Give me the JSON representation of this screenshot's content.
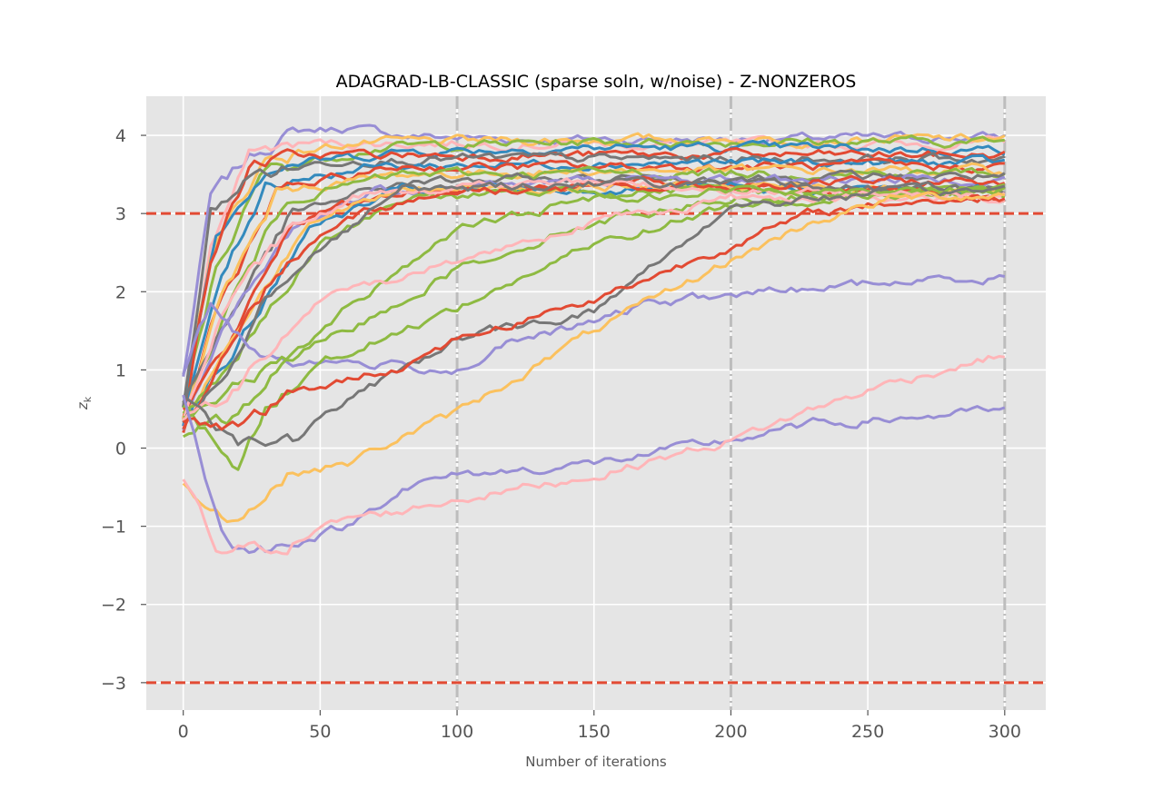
{
  "chart_data": {
    "type": "line",
    "title": "ADAGRAD-LB-CLASSIC (sparse soln, w/noise) - Z-NONZEROS",
    "xlabel": "Number of iterations",
    "ylabel": "z_k",
    "xlim": [
      -13.5,
      315
    ],
    "ylim": [
      -3.35,
      4.5
    ],
    "xticks": [
      0,
      50,
      100,
      150,
      200,
      250,
      300
    ],
    "yticks": [
      -3,
      -2,
      -1,
      0,
      1,
      2,
      3,
      4
    ],
    "xtick_labels": [
      "0",
      "50",
      "100",
      "150",
      "200",
      "250",
      "300"
    ],
    "ytick_labels": [
      "−3",
      "−2",
      "−1",
      "0",
      "1",
      "2",
      "3",
      "4"
    ],
    "grid": true,
    "background": "#e5e5e5",
    "threshold_lines": [
      {
        "y": 3,
        "color": "#e24a33",
        "style": "dashed"
      },
      {
        "y": -3,
        "color": "#e24a33",
        "style": "dashed"
      }
    ],
    "vertical_markers": [
      {
        "x": 100,
        "color": "#bdbdbd",
        "style": "dashdot"
      },
      {
        "x": 200,
        "color": "#bdbdbd",
        "style": "dashdot"
      },
      {
        "x": 300,
        "color": "#bdbdbd",
        "style": "dashdot"
      }
    ],
    "palette": [
      "#e24a33",
      "#348abd",
      "#988ed5",
      "#777777",
      "#fbc15e",
      "#8eba42",
      "#ffb5b8"
    ],
    "series": [
      {
        "color": "#988ed5",
        "values": [
          [
            0,
            0.9
          ],
          [
            10,
            3.2
          ],
          [
            25,
            3.75
          ],
          [
            40,
            4.05
          ],
          [
            60,
            4.1
          ],
          [
            80,
            4.0
          ],
          [
            120,
            3.95
          ],
          [
            200,
            3.95
          ],
          [
            300,
            3.98
          ]
        ]
      },
      {
        "color": "#ffb5b8",
        "values": [
          [
            0,
            0.3
          ],
          [
            10,
            2.6
          ],
          [
            25,
            3.8
          ],
          [
            45,
            3.9
          ],
          [
            100,
            3.9
          ],
          [
            200,
            3.88
          ],
          [
            300,
            3.9
          ]
        ]
      },
      {
        "color": "#fbc15e",
        "values": [
          [
            0,
            0.4
          ],
          [
            10,
            2.5
          ],
          [
            30,
            3.7
          ],
          [
            60,
            3.9
          ],
          [
            150,
            3.95
          ],
          [
            300,
            3.95
          ]
        ]
      },
      {
        "color": "#8eba42",
        "values": [
          [
            0,
            0.5
          ],
          [
            12,
            2.3
          ],
          [
            30,
            3.55
          ],
          [
            70,
            3.85
          ],
          [
            150,
            3.92
          ],
          [
            300,
            3.92
          ]
        ]
      },
      {
        "color": "#348abd",
        "values": [
          [
            0,
            0.6
          ],
          [
            12,
            2.8
          ],
          [
            30,
            3.6
          ],
          [
            80,
            3.8
          ],
          [
            160,
            3.85
          ],
          [
            300,
            3.82
          ]
        ]
      },
      {
        "color": "#e24a33",
        "values": [
          [
            0,
            0.4
          ],
          [
            10,
            2.4
          ],
          [
            25,
            3.65
          ],
          [
            50,
            3.75
          ],
          [
            150,
            3.75
          ],
          [
            300,
            3.75
          ]
        ]
      },
      {
        "color": "#777777",
        "values": [
          [
            0,
            0.5
          ],
          [
            10,
            3.0
          ],
          [
            25,
            3.5
          ],
          [
            60,
            3.7
          ],
          [
            150,
            3.7
          ],
          [
            300,
            3.7
          ]
        ]
      },
      {
        "color": "#348abd",
        "values": [
          [
            0,
            0.3
          ],
          [
            12,
            2.0
          ],
          [
            30,
            3.4
          ],
          [
            70,
            3.6
          ],
          [
            150,
            3.65
          ],
          [
            300,
            3.65
          ]
        ]
      },
      {
        "color": "#e24a33",
        "values": [
          [
            0,
            0.2
          ],
          [
            12,
            1.8
          ],
          [
            35,
            3.3
          ],
          [
            80,
            3.6
          ],
          [
            160,
            3.6
          ],
          [
            300,
            3.6
          ]
        ]
      },
      {
        "color": "#fbc15e",
        "values": [
          [
            0,
            0.4
          ],
          [
            14,
            1.9
          ],
          [
            35,
            3.3
          ],
          [
            80,
            3.5
          ],
          [
            160,
            3.55
          ],
          [
            300,
            3.55
          ]
        ]
      },
      {
        "color": "#8eba42",
        "values": [
          [
            0,
            0.3
          ],
          [
            15,
            1.7
          ],
          [
            38,
            3.2
          ],
          [
            80,
            3.5
          ],
          [
            160,
            3.52
          ],
          [
            300,
            3.52
          ]
        ]
      },
      {
        "color": "#777777",
        "values": [
          [
            0,
            0.6
          ],
          [
            15,
            1.6
          ],
          [
            40,
            3.0
          ],
          [
            80,
            3.4
          ],
          [
            150,
            3.45
          ],
          [
            300,
            3.48
          ]
        ]
      },
      {
        "color": "#988ed5",
        "values": [
          [
            0,
            0.2
          ],
          [
            15,
            1.5
          ],
          [
            40,
            2.8
          ],
          [
            70,
            3.3
          ],
          [
            150,
            3.42
          ],
          [
            300,
            3.45
          ]
        ]
      },
      {
        "color": "#e24a33",
        "values": [
          [
            0,
            0.5
          ],
          [
            18,
            1.4
          ],
          [
            40,
            2.9
          ],
          [
            80,
            3.3
          ],
          [
            160,
            3.38
          ],
          [
            300,
            3.42
          ]
        ]
      },
      {
        "color": "#348abd",
        "values": [
          [
            0,
            0.4
          ],
          [
            20,
            1.3
          ],
          [
            45,
            2.8
          ],
          [
            80,
            3.3
          ],
          [
            160,
            3.3
          ],
          [
            300,
            3.32
          ]
        ]
      },
      {
        "color": "#fbc15e",
        "values": [
          [
            0,
            0.3
          ],
          [
            20,
            1.6
          ],
          [
            45,
            2.9
          ],
          [
            80,
            3.3
          ],
          [
            150,
            3.35
          ],
          [
            300,
            3.3
          ]
        ]
      },
      {
        "color": "#8eba42",
        "values": [
          [
            0,
            0.4
          ],
          [
            20,
            1.2
          ],
          [
            50,
            2.6
          ],
          [
            80,
            3.2
          ],
          [
            150,
            3.3
          ],
          [
            300,
            3.25
          ]
        ]
      },
      {
        "color": "#e24a33",
        "values": [
          [
            0,
            0.3
          ],
          [
            15,
            1.2
          ],
          [
            35,
            2.3
          ],
          [
            60,
            3.0
          ],
          [
            100,
            3.3
          ],
          [
            200,
            3.35
          ],
          [
            300,
            3.2
          ]
        ]
      },
      {
        "color": "#ffb5b8",
        "values": [
          [
            0,
            0.3
          ],
          [
            15,
            1.8
          ],
          [
            40,
            2.8
          ],
          [
            70,
            3.3
          ],
          [
            150,
            3.4
          ],
          [
            300,
            3.15
          ]
        ]
      },
      {
        "color": "#777777",
        "values": [
          [
            0,
            0.3
          ],
          [
            15,
            1.0
          ],
          [
            30,
            2.0
          ],
          [
            55,
            2.7
          ],
          [
            80,
            3.3
          ],
          [
            150,
            3.4
          ],
          [
            300,
            3.3
          ]
        ]
      },
      {
        "color": "#988ed5",
        "values": [
          [
            0,
            0.9
          ],
          [
            10,
            1.8
          ],
          [
            25,
            1.3
          ],
          [
            40,
            1.1
          ],
          [
            60,
            1.1
          ],
          [
            80,
            1.05
          ],
          [
            100,
            1.0
          ],
          [
            120,
            1.35
          ],
          [
            150,
            1.6
          ],
          [
            170,
            1.85
          ],
          [
            200,
            1.95
          ],
          [
            230,
            2.05
          ],
          [
            260,
            2.12
          ],
          [
            300,
            2.2
          ]
        ]
      },
      {
        "color": "#8eba42",
        "values": [
          [
            0,
            0.5
          ],
          [
            20,
            -0.2
          ],
          [
            30,
            0.5
          ],
          [
            50,
            1.1
          ],
          [
            80,
            1.5
          ],
          [
            100,
            1.8
          ],
          [
            150,
            2.6
          ],
          [
            200,
            3.1
          ],
          [
            250,
            3.25
          ],
          [
            300,
            3.28
          ]
        ]
      },
      {
        "color": "#8eba42",
        "values": [
          [
            0,
            0.2
          ],
          [
            20,
            0.4
          ],
          [
            40,
            1.2
          ],
          [
            60,
            1.8
          ],
          [
            100,
            2.8
          ],
          [
            150,
            3.2
          ],
          [
            200,
            3.3
          ],
          [
            300,
            3.3
          ]
        ]
      },
      {
        "color": "#8eba42",
        "values": [
          [
            0,
            0.4
          ],
          [
            25,
            0.9
          ],
          [
            60,
            1.5
          ],
          [
            100,
            2.3
          ],
          [
            150,
            2.9
          ],
          [
            200,
            3.2
          ],
          [
            300,
            3.3
          ]
        ]
      },
      {
        "color": "#ffb5b8",
        "values": [
          [
            0,
            0.3
          ],
          [
            20,
            0.8
          ],
          [
            50,
            1.9
          ],
          [
            100,
            2.4
          ],
          [
            150,
            2.9
          ],
          [
            200,
            3.2
          ],
          [
            300,
            3.25
          ]
        ]
      },
      {
        "color": "#777777",
        "values": [
          [
            0,
            0.7
          ],
          [
            20,
            0.1
          ],
          [
            40,
            0.1
          ],
          [
            60,
            0.6
          ],
          [
            100,
            1.4
          ],
          [
            150,
            1.75
          ],
          [
            200,
            3.1
          ],
          [
            250,
            3.25
          ],
          [
            300,
            3.3
          ]
        ]
      },
      {
        "color": "#e24a33",
        "values": [
          [
            0,
            0.4
          ],
          [
            20,
            0.3
          ],
          [
            40,
            0.7
          ],
          [
            80,
            1.05
          ],
          [
            100,
            1.4
          ],
          [
            150,
            1.9
          ],
          [
            200,
            2.6
          ],
          [
            230,
            3.0
          ],
          [
            260,
            3.15
          ],
          [
            300,
            3.2
          ]
        ]
      },
      {
        "color": "#fbc15e",
        "values": [
          [
            0,
            -0.5
          ],
          [
            20,
            -0.9
          ],
          [
            40,
            -0.3
          ],
          [
            60,
            -0.2
          ],
          [
            80,
            0.15
          ],
          [
            100,
            0.45
          ],
          [
            150,
            1.5
          ],
          [
            200,
            2.4
          ],
          [
            230,
            2.9
          ],
          [
            260,
            3.2
          ],
          [
            300,
            3.25
          ]
        ]
      },
      {
        "color": "#988ed5",
        "values": [
          [
            0,
            0.7
          ],
          [
            15,
            -1.2
          ],
          [
            25,
            -1.35
          ],
          [
            40,
            -1.2
          ],
          [
            60,
            -1.0
          ],
          [
            80,
            -0.5
          ],
          [
            100,
            -0.35
          ],
          [
            150,
            -0.2
          ],
          [
            200,
            0.1
          ],
          [
            230,
            0.3
          ],
          [
            260,
            0.38
          ],
          [
            300,
            0.48
          ]
        ]
      },
      {
        "color": "#ffb5b8",
        "values": [
          [
            0,
            -0.4
          ],
          [
            12,
            -1.3
          ],
          [
            25,
            -1.3
          ],
          [
            40,
            -1.2
          ],
          [
            60,
            -0.9
          ],
          [
            80,
            -0.8
          ],
          [
            100,
            -0.65
          ],
          [
            150,
            -0.35
          ],
          [
            200,
            0.1
          ],
          [
            230,
            0.5
          ],
          [
            260,
            0.85
          ],
          [
            300,
            1.2
          ]
        ]
      }
    ]
  }
}
